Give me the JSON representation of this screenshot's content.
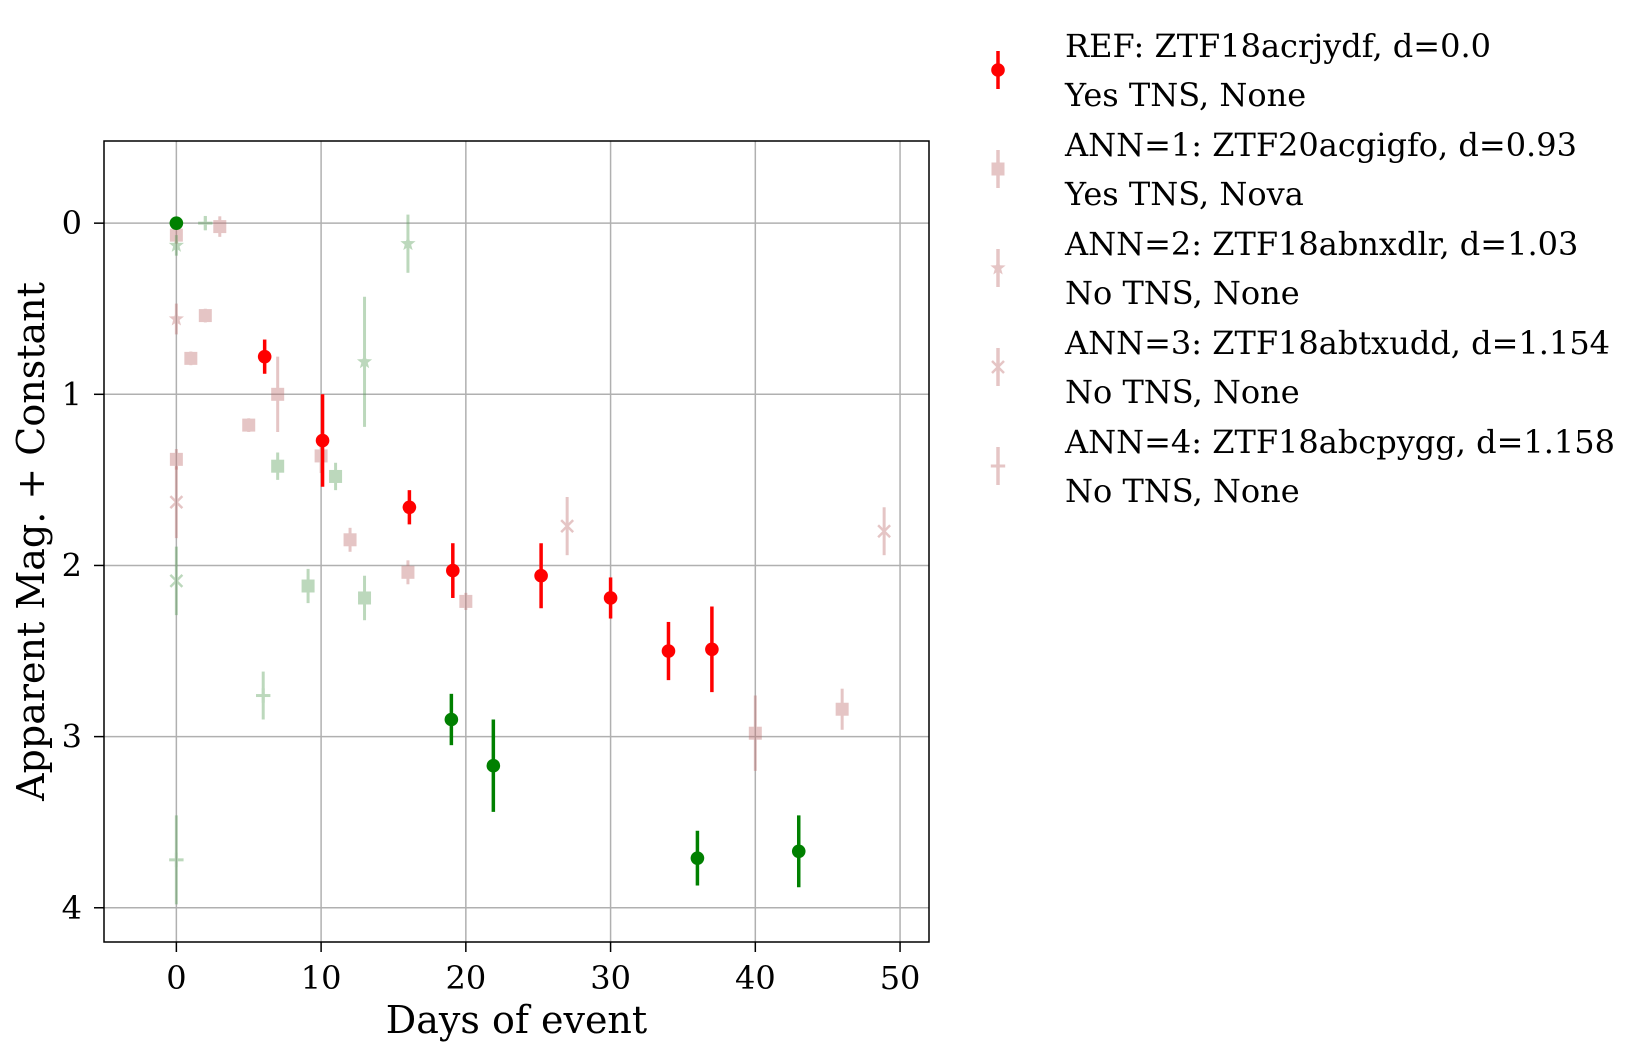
{
  "chart_data": {
    "type": "scatter",
    "title": "",
    "xlabel": "Days of event",
    "ylabel": "Apparent Mag. + Constant",
    "xlim": [
      -5,
      52
    ],
    "ylim": [
      4.2,
      -0.48
    ],
    "y_inverted": true,
    "xticks": [
      "0",
      "10",
      "20",
      "30",
      "40",
      "50"
    ],
    "yticks": [
      "0",
      "1",
      "2",
      "3",
      "4"
    ],
    "grid": true,
    "legend_position": "outside-right",
    "colors": {
      "red": "#ff0000",
      "green": "#008000",
      "faint_red": "#c07070",
      "faint_green": "#5aa05a",
      "grid": "#b0b0b0"
    },
    "legend": [
      {
        "line1": "REF: ZTF18acrjydf, d=0.0",
        "line2": "Yes TNS, None",
        "marker": "circle",
        "opacity": 1.0
      },
      {
        "line1": "ANN=1: ZTF20acgigfo, d=0.93",
        "line2": "Yes TNS, Nova",
        "marker": "square",
        "opacity": 0.4
      },
      {
        "line1": "ANN=2: ZTF18abnxdlr, d=1.03",
        "line2": "No TNS, None",
        "marker": "star",
        "opacity": 0.4
      },
      {
        "line1": "ANN=3: ZTF18abtxudd, d=1.154",
        "line2": "No TNS, None",
        "marker": "x",
        "opacity": 0.4
      },
      {
        "line1": "ANN=4: ZTF18abcpygg, d=1.158",
        "line2": "No TNS, None",
        "marker": "plus",
        "opacity": 0.4
      }
    ],
    "series": [
      {
        "legend_index": 0,
        "marker": "circle",
        "color": "red",
        "opacity": 1.0,
        "points": [
          [
            6.1,
            0.78,
            0.1
          ],
          [
            10.1,
            1.27,
            0.27
          ],
          [
            16.1,
            1.66,
            0.1
          ],
          [
            19.1,
            2.03,
            0.16
          ],
          [
            25.2,
            2.06,
            0.19
          ],
          [
            30.0,
            2.19,
            0.12
          ],
          [
            34.0,
            2.5,
            0.17
          ],
          [
            37.0,
            2.49,
            0.25
          ]
        ]
      },
      {
        "legend_index": 0,
        "marker": "circle",
        "color": "green",
        "opacity": 1.0,
        "points": [
          [
            0.0,
            0.0,
            0.0
          ],
          [
            19.0,
            2.9,
            0.15
          ],
          [
            21.9,
            3.17,
            0.27
          ],
          [
            36.0,
            3.71,
            0.16
          ],
          [
            43.0,
            3.67,
            0.21
          ]
        ]
      },
      {
        "legend_index": 1,
        "marker": "square",
        "color": "faint_red",
        "opacity": 0.4,
        "points": [
          [
            0.0,
            0.07,
            0.05
          ],
          [
            1.0,
            0.79,
            0.04
          ],
          [
            2.0,
            0.54,
            0.04
          ],
          [
            3.0,
            0.02,
            0.06
          ],
          [
            5.0,
            1.18,
            0.04
          ],
          [
            7.0,
            1.0,
            0.22
          ],
          [
            10.0,
            1.36,
            0.1
          ],
          [
            12.0,
            1.85,
            0.07
          ],
          [
            16.0,
            2.04,
            0.07
          ],
          [
            20.0,
            2.21,
            0.05
          ],
          [
            40.0,
            2.98,
            0.22
          ],
          [
            46.0,
            2.84,
            0.12
          ],
          [
            0.0,
            1.38,
            0.06
          ]
        ]
      },
      {
        "legend_index": 1,
        "marker": "square",
        "color": "faint_green",
        "opacity": 0.4,
        "points": [
          [
            7.0,
            1.42,
            0.08
          ],
          [
            9.1,
            2.12,
            0.1
          ],
          [
            11.0,
            1.48,
            0.08
          ],
          [
            13.0,
            2.19,
            0.13
          ]
        ]
      },
      {
        "legend_index": 2,
        "marker": "star",
        "color": "faint_red",
        "opacity": 0.4,
        "points": [
          [
            0.0,
            0.56,
            0.09
          ]
        ]
      },
      {
        "legend_index": 2,
        "marker": "star",
        "color": "faint_green",
        "opacity": 0.4,
        "points": [
          [
            0.0,
            0.13,
            0.06
          ],
          [
            13.0,
            0.81,
            0.38
          ],
          [
            16.0,
            0.12,
            0.17
          ]
        ]
      },
      {
        "legend_index": 3,
        "marker": "x",
        "color": "faint_red",
        "opacity": 0.4,
        "points": [
          [
            0.0,
            1.63,
            0.21
          ],
          [
            27.0,
            1.77,
            0.17
          ],
          [
            48.9,
            1.8,
            0.14
          ]
        ]
      },
      {
        "legend_index": 3,
        "marker": "x",
        "color": "faint_green",
        "opacity": 0.4,
        "points": [
          [
            0.0,
            2.09,
            0.2
          ]
        ]
      },
      {
        "legend_index": 4,
        "marker": "plus",
        "color": "faint_green",
        "opacity": 0.4,
        "points": [
          [
            0.0,
            3.72,
            0.26
          ],
          [
            6.0,
            2.76,
            0.14
          ],
          [
            2.0,
            0.0,
            0.04
          ]
        ]
      }
    ]
  }
}
